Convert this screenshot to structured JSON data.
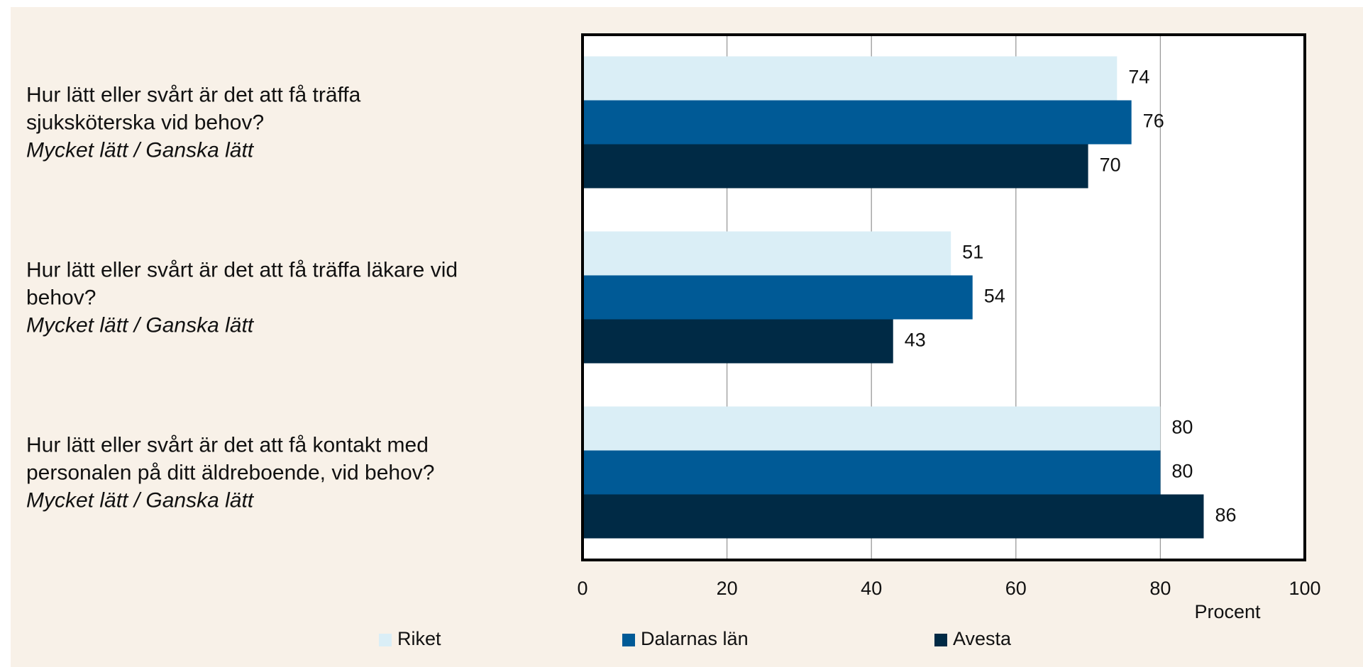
{
  "chart_data": {
    "type": "bar",
    "orientation": "horizontal",
    "categories": [
      "Hur lätt eller svårt är det att få träffa sjuksköterska vid behov?",
      "Hur lätt eller svårt är det att få träffa läkare vid behov?",
      "Hur lätt eller svårt är det att få kontakt med personalen på ditt äldreboende, vid behov?"
    ],
    "category_subtitles": [
      "Mycket lätt / Ganska lätt",
      "Mycket lätt / Ganska lätt",
      "Mycket lätt / Ganska lätt"
    ],
    "series": [
      {
        "name": "Riket",
        "color": "#daeef6",
        "values": [
          74,
          51,
          80
        ]
      },
      {
        "name": "Dalarnas län",
        "color": "#005a96",
        "values": [
          76,
          54,
          80
        ]
      },
      {
        "name": "Avesta",
        "color": "#002a45",
        "values": [
          70,
          43,
          86
        ]
      }
    ],
    "x_label": "Procent",
    "xlim": [
      0,
      100
    ],
    "xticks": [
      0,
      20,
      40,
      60,
      80,
      100
    ],
    "grid": true,
    "legend": "bottom"
  }
}
